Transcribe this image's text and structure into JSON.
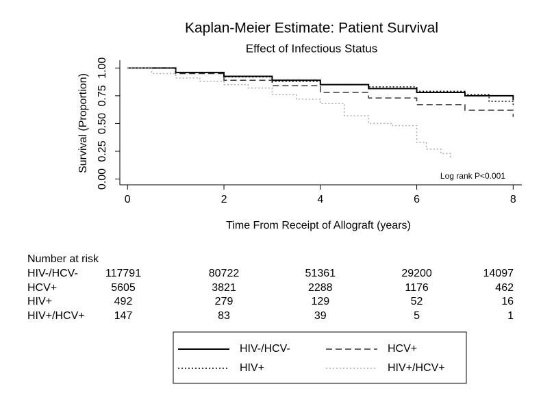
{
  "chart_data": {
    "type": "line",
    "step": true,
    "title": "Kaplan-Meier Estimate: Patient Survival",
    "subtitle": "Effect of Infectious Status",
    "x_label": "Time From Receipt of Allograft (years)",
    "y_label": "Survival (Proportion)",
    "annotation": "Log rank P<0.001",
    "xlim": [
      -0.16,
      8.18
    ],
    "ylim": [
      -0.04,
      1.07
    ],
    "xticks": [
      0,
      2,
      4,
      6,
      8
    ],
    "yticks": [
      {
        "value": 0,
        "label": "0.00"
      },
      {
        "value": 0.25,
        "label": "0.25"
      },
      {
        "value": 0.5,
        "label": "0.50"
      },
      {
        "value": 0.75,
        "label": "0.75"
      },
      {
        "value": 1,
        "label": "1.00"
      }
    ],
    "series": [
      {
        "name": "HIV-/HCV-",
        "color": "#000000",
        "dash": "solid",
        "x": [
          0,
          1,
          2,
          3,
          4,
          5,
          6,
          7,
          8
        ],
        "values": [
          1,
          0.96,
          0.925,
          0.89,
          0.85,
          0.815,
          0.78,
          0.75,
          0.71
        ]
      },
      {
        "name": "HCV+",
        "color": "#333333",
        "dash": "dashed",
        "x": [
          0,
          1,
          2,
          3,
          4,
          5,
          6,
          7,
          8
        ],
        "values": [
          1,
          0.95,
          0.89,
          0.84,
          0.78,
          0.73,
          0.67,
          0.62,
          0.56
        ]
      },
      {
        "name": "HIV+",
        "color": "#000000",
        "dash": "dotted",
        "x": [
          0,
          1,
          2,
          3,
          4,
          5,
          6,
          7,
          7.5,
          8
        ],
        "values": [
          1,
          0.96,
          0.92,
          0.88,
          0.85,
          0.83,
          0.79,
          0.76,
          0.7,
          0.66
        ]
      },
      {
        "name": "HIV+/HCV+",
        "color": "#aaaaaa",
        "dash": "dotted",
        "x": [
          0,
          0.5,
          1,
          1.5,
          2,
          2.5,
          3,
          3.5,
          4,
          4.5,
          5,
          5.5,
          6,
          6.2,
          6.5,
          6.7
        ],
        "values": [
          1,
          0.95,
          0.91,
          0.88,
          0.85,
          0.82,
          0.76,
          0.72,
          0.68,
          0.57,
          0.5,
          0.48,
          0.33,
          0.27,
          0.23,
          0.19
        ]
      }
    ],
    "risk_table": {
      "title": "Number at risk",
      "rows": [
        {
          "name": "HIV-/HCV-",
          "values": [
            117791,
            80722,
            51361,
            29200,
            14097
          ]
        },
        {
          "name": "HCV+",
          "values": [
            5605,
            3821,
            2288,
            1176,
            462
          ]
        },
        {
          "name": "HIV+",
          "values": [
            492,
            279,
            129,
            52,
            16
          ]
        },
        {
          "name": "HIV+/HCV+",
          "values": [
            147,
            83,
            39,
            5,
            1
          ]
        }
      ]
    }
  }
}
